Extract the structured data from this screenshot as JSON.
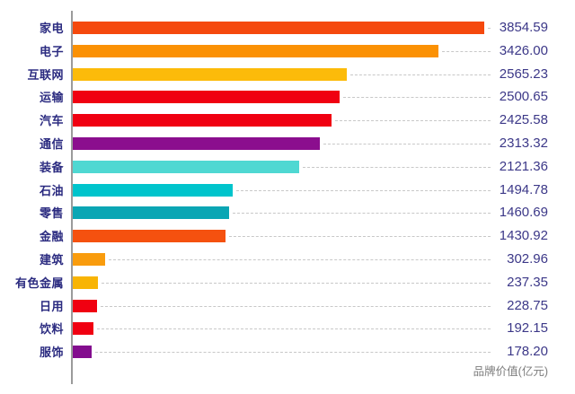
{
  "chart_data": {
    "type": "bar",
    "orientation": "horizontal",
    "title": "",
    "value_axis_label": "品牌价值(亿元)",
    "xlim": [
      0,
      3854.59
    ],
    "grid": false,
    "legend": "none",
    "categories": [
      "家电",
      "电子",
      "互联网",
      "运输",
      "汽车",
      "通信",
      "装备",
      "石油",
      "零售",
      "金融",
      "建筑",
      "有色金属",
      "日用",
      "饮料",
      "服饰"
    ],
    "values": [
      3854.59,
      3426.0,
      2565.23,
      2500.65,
      2425.58,
      2313.32,
      2121.36,
      1494.78,
      1460.69,
      1430.92,
      302.96,
      237.35,
      228.75,
      192.15,
      178.2
    ],
    "value_labels": [
      "3854.59",
      "3426.00",
      "2565.23",
      "2500.65",
      "2425.58",
      "2313.32",
      "2121.36",
      "1494.78",
      "1460.69",
      "1430.92",
      "302.96",
      "237.35",
      "228.75",
      "192.15",
      "178.20"
    ],
    "bar_colors": [
      "#f5490d",
      "#fb9104",
      "#fcbb0a",
      "#f00011",
      "#f00011",
      "#8b0e8e",
      "#4fd8d2",
      "#00c4cc",
      "#0aa6b4",
      "#f5510f",
      "#f99c0d",
      "#f8b404",
      "#f00011",
      "#f00011",
      "#830d8e"
    ]
  },
  "colors": {
    "category_label": "#2b2b80",
    "value_label": "#3c3888",
    "axis_line": "#9b9b9b",
    "leader_line": "#c8c8c8",
    "axis_label_text": "#7c7c7c",
    "background": "#ffffff"
  }
}
